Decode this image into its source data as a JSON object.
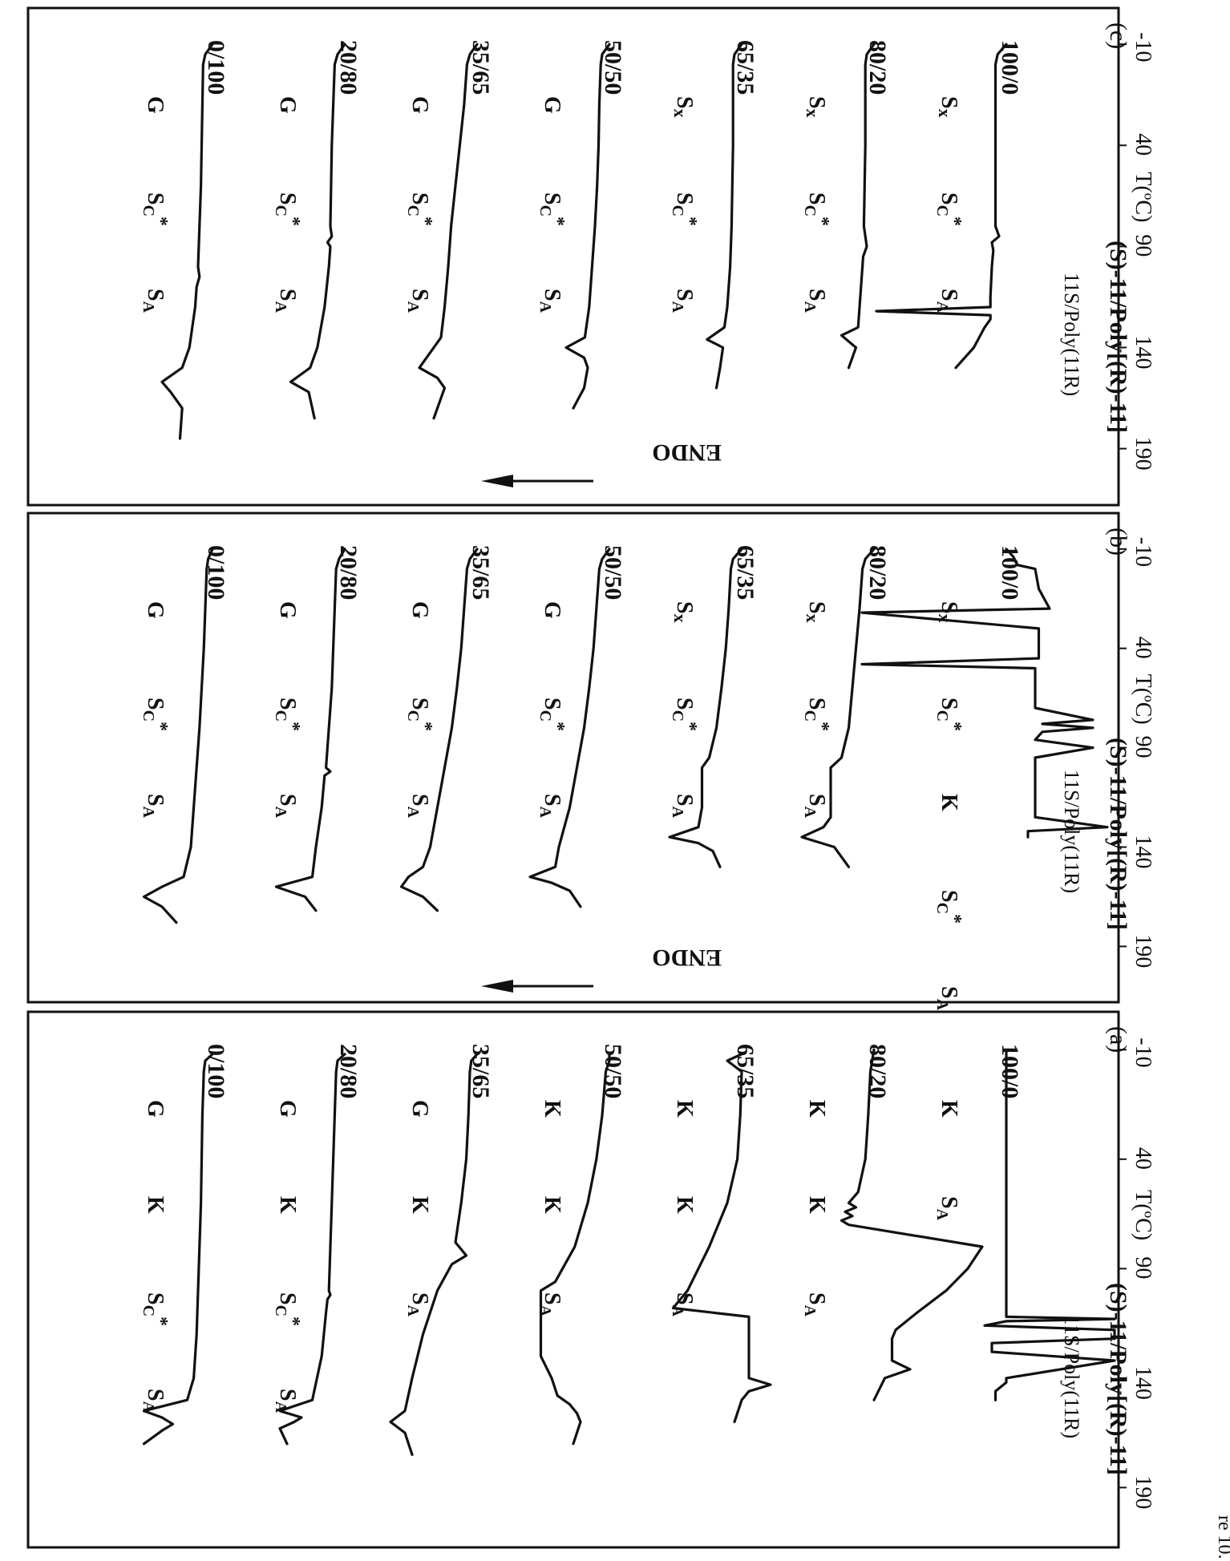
{
  "caption": "re 10.",
  "endo_label": "ENDO",
  "chart_data": [
    {
      "type": "line",
      "panel": "(a)",
      "title": "(S)-11/Poly[(R)-11]",
      "legend_header": "11S/Poly(11R)",
      "xlabel": "T(ºC)",
      "xticks": [
        -10,
        40,
        90,
        140,
        190
      ],
      "xlim": [
        -20,
        210
      ],
      "series": [
        {
          "name": "100/0",
          "phases": [
            "K",
            "SA"
          ],
          "x": [
            -10,
            0,
            20,
            40,
            60,
            80,
            100,
            106,
            112,
            113,
            114,
            116,
            118,
            122,
            124,
            128,
            132,
            140,
            142,
            146,
            150
          ],
          "y": [
            0,
            0,
            0,
            0,
            0,
            0,
            0,
            0,
            0,
            150,
            0,
            -30,
            150,
            150,
            -20,
            -20,
            150,
            0,
            0,
            -15,
            -15
          ]
        },
        {
          "name": "80/20",
          "phases": [
            "K",
            "K",
            "SA"
          ],
          "x": [
            -10,
            0,
            20,
            40,
            55,
            60,
            62,
            64,
            66,
            68,
            70,
            80,
            90,
            100,
            110,
            118,
            122,
            132,
            136,
            140,
            150
          ],
          "y": [
            0,
            -5,
            -8,
            -12,
            -22,
            -35,
            -25,
            -40,
            -30,
            -45,
            -35,
            150,
            130,
            100,
            60,
            30,
            25,
            25,
            50,
            15,
            0
          ]
        },
        {
          "name": "65/35",
          "phases": [
            "K",
            "K",
            "SA"
          ],
          "x": [
            -8,
            -5,
            0,
            20,
            40,
            60,
            80,
            100,
            108,
            112,
            120,
            132,
            140,
            143,
            146,
            150,
            160
          ],
          "y": [
            0,
            -20,
            0,
            -2,
            -6,
            -20,
            -45,
            -75,
            -95,
            10,
            10,
            10,
            10,
            40,
            10,
            0,
            -10
          ]
        },
        {
          "name": "50/50",
          "phases": [
            "K",
            "K",
            "SA"
          ],
          "x": [
            -8,
            -5,
            0,
            20,
            40,
            60,
            80,
            96,
            100,
            110,
            130,
            140,
            148,
            152,
            156,
            160,
            170
          ],
          "y": [
            0,
            0,
            -5,
            -10,
            -18,
            -30,
            -48,
            -75,
            -95,
            -95,
            -95,
            -80,
            -72,
            -55,
            -45,
            -40,
            -50
          ]
        },
        {
          "name": "35/65",
          "phases": [
            "G",
            "K",
            "SA"
          ],
          "x": [
            -8,
            -5,
            0,
            20,
            40,
            60,
            78,
            80,
            84,
            88,
            100,
            120,
            140,
            155,
            160,
            165,
            175
          ],
          "y": [
            0,
            -8,
            -10,
            -12,
            -15,
            -22,
            -30,
            -25,
            -15,
            -35,
            -55,
            -75,
            -90,
            -100,
            -120,
            -100,
            -90
          ]
        },
        {
          "name": "20/80",
          "phases": [
            "G",
            "K",
            "Sc*",
            "SA"
          ],
          "x": [
            -8,
            -5,
            0,
            20,
            40,
            60,
            80,
            100,
            102,
            104,
            110,
            130,
            150,
            155,
            158,
            160,
            163,
            170
          ],
          "y": [
            0,
            -10,
            -12,
            -14,
            -16,
            -18,
            -20,
            -22,
            -20,
            -24,
            -26,
            -32,
            -45,
            -90,
            -60,
            -70,
            -90,
            -80
          ]
        },
        {
          "name": "0/100",
          "phases": [
            "G",
            "K",
            "Sc*",
            "SA"
          ],
          "x": [
            -8,
            -5,
            0,
            20,
            40,
            60,
            80,
            100,
            120,
            140,
            150,
            155,
            158,
            161,
            164,
            170
          ],
          "y": [
            0,
            -10,
            -12,
            -14,
            -15,
            -16,
            -18,
            -20,
            -22,
            -26,
            -35,
            -95,
            -70,
            -55,
            -70,
            -95
          ]
        }
      ]
    },
    {
      "type": "line",
      "panel": "(b)",
      "title": "(S)-11/Poly[(R)-11]",
      "legend_header": "11S/Poly(11R)",
      "xlabel": "T(ºC)",
      "xticks": [
        -10,
        40,
        90,
        140,
        190
      ],
      "xlim": [
        -20,
        210
      ],
      "series": [
        {
          "name": "100/0",
          "phases": [
            "Sx",
            "Sc*",
            "K",
            "Sc*",
            "SA"
          ],
          "x": [
            -10,
            -6,
            -2,
            0,
            10,
            20,
            22,
            30,
            45,
            48,
            50,
            60,
            70,
            76,
            78,
            80,
            82,
            86,
            90,
            95,
            125,
            130,
            132,
            135
          ],
          "y": [
            0,
            10,
            15,
            40,
            45,
            60,
            -200,
            45,
            45,
            -200,
            40,
            40,
            40,
            120,
            50,
            120,
            50,
            40,
            120,
            40,
            40,
            140,
            30,
            30
          ]
        },
        {
          "name": "80/20",
          "phases": [
            "Sx",
            "Sc*",
            "SA"
          ],
          "x": [
            -10,
            -5,
            0,
            20,
            40,
            60,
            80,
            95,
            100,
            110,
            125,
            130,
            135,
            140,
            150
          ],
          "y": [
            0,
            -12,
            -16,
            -20,
            -25,
            -30,
            -35,
            -45,
            -60,
            -60,
            -60,
            -70,
            -100,
            -55,
            -35
          ]
        },
        {
          "name": "65/35",
          "phases": [
            "Sx",
            "Sc*",
            "SA"
          ],
          "x": [
            -10,
            -5,
            0,
            20,
            40,
            60,
            80,
            95,
            100,
            120,
            130,
            135,
            138,
            142,
            150
          ],
          "y": [
            0,
            -12,
            -15,
            -18,
            -22,
            -28,
            -35,
            -45,
            -55,
            -55,
            -60,
            -100,
            -60,
            -40,
            -30
          ]
        },
        {
          "name": "50/50",
          "phases": [
            "G",
            "Sc*",
            "SA"
          ],
          "x": [
            -10,
            -5,
            0,
            20,
            40,
            60,
            80,
            100,
            120,
            140,
            150,
            155,
            158,
            162,
            170
          ],
          "y": [
            0,
            -10,
            -14,
            -18,
            -22,
            -28,
            -35,
            -45,
            -55,
            -70,
            -75,
            -110,
            -80,
            -55,
            -40
          ]
        },
        {
          "name": "35/65",
          "phases": [
            "G",
            "Sc*",
            "SA"
          ],
          "x": [
            -10,
            -5,
            0,
            20,
            40,
            60,
            80,
            100,
            120,
            140,
            150,
            155,
            160,
            165,
            172
          ],
          "y": [
            0,
            -10,
            -14,
            -18,
            -22,
            -28,
            -35,
            -45,
            -55,
            -65,
            -75,
            -95,
            -105,
            -75,
            -55
          ]
        },
        {
          "name": "20/80",
          "phases": [
            "G",
            "Sc*",
            "SA"
          ],
          "x": [
            -10,
            -5,
            0,
            20,
            40,
            60,
            80,
            100,
            102,
            104,
            120,
            140,
            155,
            160,
            165,
            172
          ],
          "y": [
            0,
            -8,
            -12,
            -14,
            -16,
            -18,
            -22,
            -26,
            -20,
            -28,
            -32,
            -40,
            -45,
            -95,
            -55,
            -40
          ]
        },
        {
          "name": "0/100",
          "phases": [
            "G",
            "Sc*",
            "SA"
          ],
          "x": [
            -10,
            -5,
            0,
            20,
            40,
            60,
            80,
            100,
            120,
            140,
            155,
            160,
            165,
            170,
            178
          ],
          "y": [
            0,
            -6,
            -8,
            -10,
            -12,
            -15,
            -18,
            -22,
            -26,
            -30,
            -40,
            -70,
            -95,
            -70,
            -50
          ]
        }
      ]
    },
    {
      "type": "line",
      "panel": "(c)",
      "title": "(S)-11/Poly[(R)-11]",
      "legend_header": "11S/Poly(11R)",
      "xlabel": "T(ºC)",
      "xticks": [
        -10,
        40,
        90,
        140,
        190
      ],
      "xlim": [
        -20,
        210
      ],
      "series": [
        {
          "name": "100/0",
          "phases": [
            "Sx",
            "Sc*",
            "SA"
          ],
          "x": [
            -10,
            -5,
            0,
            20,
            40,
            60,
            80,
            85,
            88,
            92,
            100,
            115,
            120,
            122,
            124,
            126,
            130,
            140,
            150
          ],
          "y": [
            0,
            -12,
            -15,
            -15,
            -15,
            -15,
            -15,
            -10,
            -20,
            -18,
            -20,
            -22,
            -22,
            -180,
            -22,
            -22,
            -30,
            -45,
            -70
          ]
        },
        {
          "name": "80/20",
          "phases": [
            "Sx",
            "Sc*",
            "SA"
          ],
          "x": [
            -10,
            -5,
            0,
            20,
            40,
            60,
            80,
            90,
            95,
            100,
            120,
            130,
            134,
            140,
            150
          ],
          "y": [
            0,
            -10,
            -12,
            -12,
            -12,
            -13,
            -14,
            -10,
            -15,
            -16,
            -20,
            -22,
            -45,
            -25,
            -35
          ]
        },
        {
          "name": "65/35",
          "phases": [
            "Sx",
            "Sc*",
            "SA"
          ],
          "x": [
            -10,
            -5,
            0,
            20,
            40,
            60,
            80,
            90,
            100,
            120,
            130,
            136,
            140,
            150,
            160
          ],
          "y": [
            0,
            -10,
            -12,
            -12,
            -12,
            -13,
            -14,
            -15,
            -16,
            -20,
            -24,
            -48,
            -26,
            -30,
            -35
          ]
        },
        {
          "name": "50/50",
          "phases": [
            "G",
            "Sc*",
            "SA"
          ],
          "x": [
            -10,
            -5,
            0,
            20,
            40,
            60,
            80,
            100,
            120,
            135,
            140,
            145,
            150,
            160,
            170
          ],
          "y": [
            0,
            -10,
            -12,
            -14,
            -15,
            -17,
            -20,
            -24,
            -28,
            -34,
            -60,
            -35,
            -30,
            -35,
            -50
          ]
        },
        {
          "name": "35/65",
          "phases": [
            "G",
            "Sc*",
            "SA"
          ],
          "x": [
            -10,
            -5,
            0,
            20,
            40,
            60,
            80,
            100,
            120,
            135,
            145,
            150,
            155,
            160,
            175
          ],
          "y": [
            0,
            -10,
            -14,
            -18,
            -24,
            -30,
            -36,
            -40,
            -45,
            -50,
            -70,
            -80,
            -55,
            -45,
            -60
          ]
        },
        {
          "name": "20/80",
          "phases": [
            "G",
            "Sc*",
            "SA"
          ],
          "x": [
            -10,
            -5,
            0,
            20,
            40,
            60,
            80,
            85,
            88,
            90,
            100,
            120,
            140,
            150,
            157,
            162,
            175
          ],
          "y": [
            0,
            -10,
            -14,
            -16,
            -18,
            -19,
            -20,
            -18,
            -24,
            -20,
            -22,
            -28,
            -38,
            -48,
            -75,
            -50,
            -42
          ]
        },
        {
          "name": "0/100",
          "phases": [
            "G",
            "Sc*",
            "SA"
          ],
          "x": [
            -10,
            -5,
            0,
            20,
            40,
            60,
            80,
            100,
            105,
            110,
            120,
            140,
            150,
            157,
            162,
            170,
            185
          ],
          "y": [
            0,
            -10,
            -13,
            -14,
            -15,
            -16,
            -18,
            -20,
            -18,
            -22,
            -24,
            -32,
            -42,
            -70,
            -58,
            -42,
            -45
          ]
        }
      ]
    }
  ]
}
